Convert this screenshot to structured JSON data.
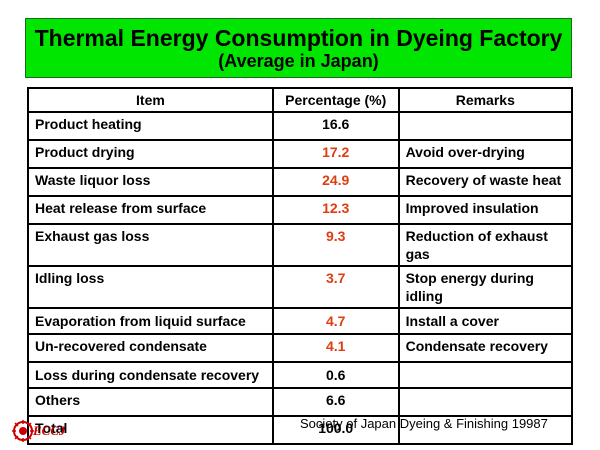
{
  "title": {
    "main": "Thermal Energy Consumption in Dyeing Factory",
    "sub": "(Average in Japan)"
  },
  "table": {
    "headers": [
      "Item",
      "Percentage (%)",
      "Remarks"
    ],
    "rows": [
      {
        "item": "Product heating",
        "pct": "16.6",
        "remark": "",
        "highlight": false
      },
      {
        "item": "Product drying",
        "pct": "17.2",
        "remark": "Avoid over-drying",
        "highlight": true
      },
      {
        "item": "Waste liquor loss",
        "pct": "24.9",
        "remark": "Recovery of waste heat",
        "highlight": true
      },
      {
        "item": "Heat release from surface",
        "pct": "12.3",
        "remark": "Improved insulation",
        "highlight": true
      },
      {
        "item": "Exhaust gas loss",
        "pct": "9.3",
        "remark": "Reduction of exhaust gas",
        "highlight": true
      },
      {
        "item": "Idling loss",
        "pct": "3.7",
        "remark": "Stop energy during idling",
        "highlight": true
      },
      {
        "item": "Evaporation from liquid surface",
        "pct": "4.7",
        "remark": "Install a cover",
        "highlight": true
      },
      {
        "item": "Un-recovered condensate",
        "pct": "4.1",
        "remark": "Condensate recovery",
        "highlight": true
      },
      {
        "item": "Loss during condensate recovery",
        "pct": "0.6",
        "remark": "",
        "highlight": false
      },
      {
        "item": "Others",
        "pct": "6.6",
        "remark": "",
        "highlight": false
      },
      {
        "item": "Total",
        "pct": "100.0",
        "remark": "",
        "highlight": false
      }
    ]
  },
  "source": "Society of Japan Dyeing & Finishing 1998",
  "page_number": "7",
  "logo": {
    "text": "ECCJ",
    "color": "#cc0000"
  },
  "colors": {
    "title_bg": "#00e600",
    "highlight": "#e03c10"
  }
}
